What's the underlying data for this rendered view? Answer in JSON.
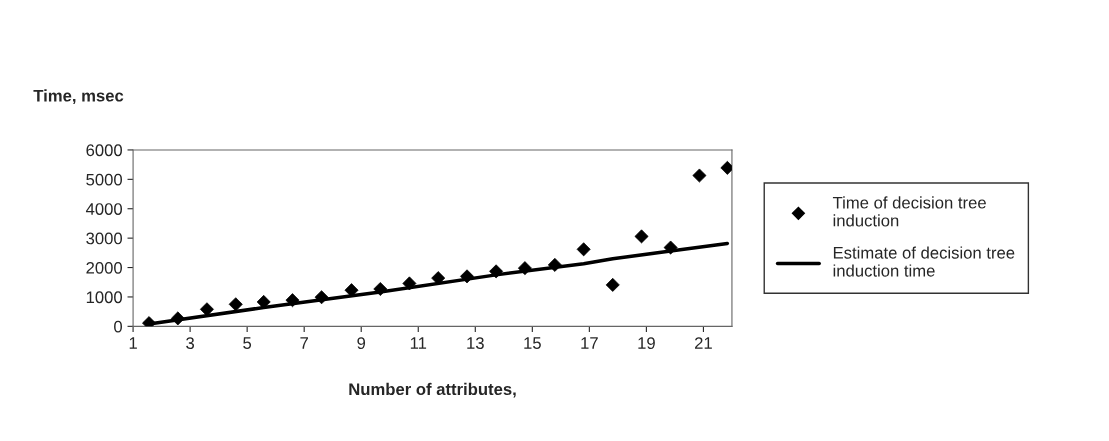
{
  "chart_data": {
    "type": "scatter",
    "xlabel": "Number of attributes,",
    "ylabel": "Time, msec",
    "xlim": [
      1,
      22
    ],
    "xticks": [
      1,
      3,
      5,
      7,
      9,
      11,
      13,
      15,
      17,
      19,
      21
    ],
    "ylim": [
      0,
      6000
    ],
    "yticks": [
      0,
      1000,
      2000,
      3000,
      4000,
      5000,
      6000
    ],
    "grid": false,
    "legend": "right",
    "series": [
      {
        "name": "Time of decision tree\ninduction",
        "marker": "diamond",
        "color": "#000000",
        "x": [
          1.56,
          2.57,
          3.59,
          4.6,
          5.58,
          6.59,
          7.61,
          8.66,
          9.67,
          10.69,
          11.7,
          12.71,
          13.73,
          14.74,
          15.79,
          16.8,
          17.82,
          18.83,
          19.85,
          20.86,
          21.84
        ],
        "values": [
          110,
          270,
          580,
          750,
          830,
          890,
          990,
          1230,
          1270,
          1460,
          1640,
          1700,
          1870,
          1980,
          2090,
          2620,
          1410,
          3060,
          2680,
          5130,
          5390
        ]
      },
      {
        "name": "Estimate of decision tree\ninduction time",
        "type": "line",
        "line_style": "solid",
        "color": "#000000",
        "x": [
          1.56,
          5.58,
          9.67,
          13.73,
          16.8,
          17.82,
          19.85,
          21.84
        ],
        "values": [
          80,
          640,
          1170,
          1750,
          2130,
          2300,
          2560,
          2820
        ]
      }
    ]
  }
}
